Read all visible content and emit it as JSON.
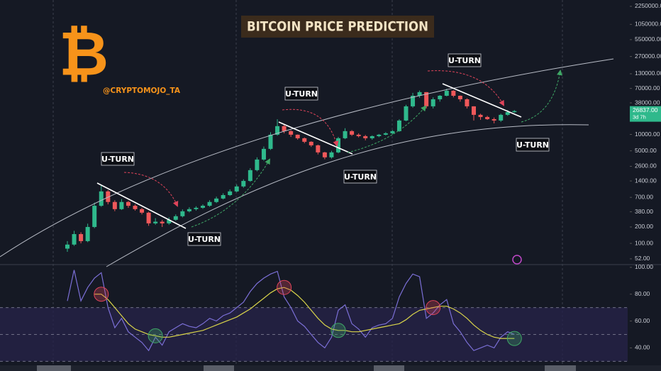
{
  "chart_data": [
    {
      "type": "candlestick",
      "title": "BITCOIN PRICE PREDICTION",
      "handle": "@CRYPTOMOJO_TA",
      "logo": "₿",
      "annotations": [
        "U-TURN",
        "U-TURN",
        "U-TURN",
        "U-TURN",
        "U-TURN",
        "U-TURN"
      ],
      "log_scale": true,
      "up_color": "#2fb98c",
      "down_color": "#f0585a",
      "ylim": [
        42,
        2940000
      ],
      "yticks": [
        {
          "value": 2250000,
          "label": "2250000.00"
        },
        {
          "value": 1050000,
          "label": "1050000.00"
        },
        {
          "value": 550000,
          "label": "550000.00"
        },
        {
          "value": 270000,
          "label": "270000.00"
        },
        {
          "value": 130000,
          "label": "130000.00"
        },
        {
          "value": 70000,
          "label": "70000.00"
        },
        {
          "value": 38000,
          "label": "38000.00"
        },
        {
          "value": 10000,
          "label": "10000.00"
        },
        {
          "value": 5000,
          "label": "5000.00"
        },
        {
          "value": 2600,
          "label": "2600.00"
        },
        {
          "value": 1400,
          "label": "1400.00"
        },
        {
          "value": 700,
          "label": "700.00"
        },
        {
          "value": 380,
          "label": "380.00"
        },
        {
          "value": 200,
          "label": "200.00"
        },
        {
          "value": 100,
          "label": "100.00"
        },
        {
          "value": 52,
          "label": "52.00"
        }
      ],
      "last_price": {
        "value": 26837,
        "label": "26837.00"
      },
      "countdown": "3d 7h",
      "open": [
        80,
        95,
        148,
        110,
        200,
        490,
        900,
        575,
        425,
        575,
        490,
        425,
        366,
        233,
        250,
        233,
        271,
        315,
        388,
        425,
        450,
        490,
        575,
        665,
        770,
        900,
        1110,
        1400,
        2210,
        3460,
        5430,
        9890,
        14200,
        11500,
        9890,
        8510,
        7330,
        6310,
        4680,
        3800,
        4680,
        8510,
        11500,
        9890,
        9300,
        8510,
        9300,
        9890,
        10500,
        11500,
        18000,
        32800,
        51300,
        59800,
        32800,
        44200,
        51300,
        63400,
        51300,
        44200,
        32800,
        22900,
        20900,
        19100,
        18000,
        22900,
        25700
      ],
      "high": [
        110,
        170,
        160,
        230,
        560,
        1150,
        950,
        620,
        650,
        600,
        520,
        450,
        380,
        290,
        270,
        300,
        340,
        420,
        460,
        480,
        520,
        620,
        720,
        830,
        980,
        1200,
        1500,
        2400,
        3800,
        6000,
        11000,
        19000,
        15000,
        12000,
        10000,
        8800,
        7500,
        6500,
        4800,
        5000,
        9000,
        13000,
        12000,
        10500,
        9800,
        9600,
        10200,
        11000,
        12000,
        19000,
        35000,
        58000,
        64000,
        60000,
        48000,
        53000,
        69000,
        65000,
        52000,
        46000,
        33000,
        24000,
        22000,
        20500,
        24000,
        28000,
        28000
      ],
      "low": [
        70,
        90,
        100,
        105,
        190,
        470,
        520,
        390,
        410,
        450,
        400,
        340,
        210,
        220,
        200,
        220,
        260,
        300,
        370,
        400,
        430,
        470,
        550,
        640,
        740,
        870,
        1050,
        1350,
        2100,
        3300,
        5200,
        9500,
        10500,
        9000,
        8000,
        6900,
        5900,
        4300,
        3500,
        3600,
        4500,
        8200,
        9400,
        8800,
        7800,
        8000,
        8900,
        9600,
        10000,
        11200,
        17500,
        31000,
        47000,
        30000,
        30000,
        40000,
        50000,
        48000,
        40000,
        30000,
        18000,
        18500,
        18500,
        16000,
        17000,
        22000,
        25000
      ],
      "close": [
        95,
        148,
        110,
        200,
        490,
        900,
        575,
        425,
        575,
        490,
        425,
        366,
        233,
        250,
        233,
        271,
        315,
        388,
        425,
        450,
        490,
        575,
        665,
        770,
        900,
        1110,
        1400,
        2210,
        3460,
        5430,
        9890,
        14200,
        11500,
        9890,
        8510,
        7330,
        6310,
        4680,
        3800,
        4680,
        8510,
        11500,
        9890,
        9300,
        8510,
        9300,
        9890,
        10500,
        11500,
        18000,
        32800,
        51300,
        59800,
        32800,
        44200,
        51300,
        63400,
        51300,
        44200,
        32800,
        22900,
        20900,
        19100,
        18000,
        22900,
        25700,
        26837
      ]
    },
    {
      "type": "line",
      "ylim": [
        27,
        101.5
      ],
      "yticks": [
        {
          "value": 100,
          "label": "100.00"
        },
        {
          "value": 80,
          "label": "80.00"
        },
        {
          "value": 60,
          "label": "60.00"
        },
        {
          "value": 40,
          "label": "40.00"
        }
      ],
      "levels": [
        30,
        50,
        70
      ],
      "band": [
        30,
        70
      ],
      "series": [
        {
          "color": "#7b6fd6",
          "values": [
            75,
            98,
            75,
            85,
            92,
            96,
            70,
            55,
            62,
            52,
            48,
            44,
            38,
            48,
            42,
            52,
            55,
            58,
            56,
            55,
            58,
            62,
            60,
            64,
            66,
            70,
            74,
            82,
            88,
            92,
            95,
            97,
            78,
            70,
            60,
            56,
            50,
            44,
            40,
            48,
            68,
            72,
            58,
            54,
            48,
            55,
            57,
            58,
            62,
            78,
            88,
            95,
            93,
            62,
            66,
            72,
            76,
            58,
            52,
            44,
            38,
            40,
            42,
            40,
            48,
            52,
            50
          ]
        },
        {
          "color": "#d9d44a",
          "values": [
            null,
            null,
            null,
            null,
            80,
            80,
            76,
            70,
            64,
            58,
            54,
            52,
            50,
            49,
            48,
            48,
            49,
            50,
            51,
            52,
            53,
            55,
            57,
            59,
            61,
            63,
            66,
            69,
            73,
            77,
            81,
            84,
            85,
            83,
            79,
            74,
            68,
            62,
            57,
            54,
            53,
            53,
            52,
            52,
            53,
            54,
            55,
            56,
            57,
            58,
            61,
            65,
            68,
            69,
            70,
            71,
            71,
            69,
            66,
            62,
            57,
            53,
            50,
            48,
            47,
            47,
            47
          ]
        }
      ]
    }
  ]
}
